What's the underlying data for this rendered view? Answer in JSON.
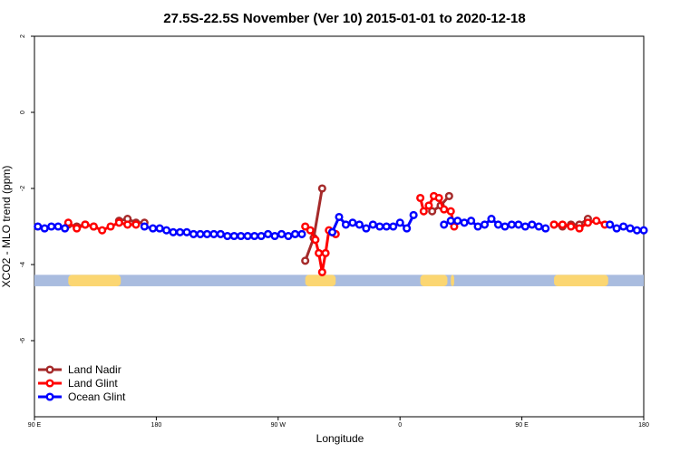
{
  "chart_data": {
    "type": "line",
    "title": "27.5S-22.5S November (Ver 10)   2015-01-01 to 2020-12-18",
    "xlabel": "Longitude",
    "ylabel": "XCO2 - MLO trend (ppm)",
    "xlim": [
      0,
      360
    ],
    "ylim": [
      -8,
      2
    ],
    "x_ticks": [
      {
        "value": 0,
        "label": "90 E"
      },
      {
        "value": 72,
        "label": "180"
      },
      {
        "value": 144,
        "label": "90 W"
      },
      {
        "value": 216,
        "label": "0"
      },
      {
        "value": 288,
        "label": "90 E"
      },
      {
        "value": 360,
        "label": "180"
      }
    ],
    "y_ticks": [
      {
        "value": 2,
        "label": "2"
      },
      {
        "value": 0,
        "label": "0"
      },
      {
        "value": -2,
        "label": "-2"
      },
      {
        "value": -4,
        "label": "-4"
      },
      {
        "value": -6,
        "label": "-6"
      }
    ],
    "legend_position": "bottom-left",
    "series": [
      {
        "name": "Land Nadir",
        "color": "#a52a2a",
        "segments": [
          [
            [
              20,
              -2.95
            ],
            [
              25,
              -3.0
            ],
            [
              30,
              -2.95
            ],
            [
              35,
              -3.0
            ]
          ],
          [
            [
              50,
              -2.85
            ],
            [
              55,
              -2.8
            ],
            [
              60,
              -2.9
            ],
            [
              65,
              -2.9
            ]
          ],
          [
            [
              160,
              -3.9
            ],
            [
              165,
              -3.3
            ],
            [
              170,
              -2.0
            ]
          ],
          [
            [
              235,
              -2.6
            ],
            [
              240,
              -2.45
            ],
            [
              245,
              -2.2
            ]
          ],
          [
            [
              307,
              -2.95
            ],
            [
              312,
              -3.0
            ],
            [
              317,
              -2.95
            ],
            [
              322,
              -2.95
            ],
            [
              327,
              -2.8
            ]
          ]
        ]
      },
      {
        "name": "Land Glint",
        "color": "#ff0000",
        "segments": [
          [
            [
              20,
              -2.9
            ],
            [
              25,
              -3.05
            ],
            [
              30,
              -2.95
            ],
            [
              35,
              -3.0
            ],
            [
              40,
              -3.1
            ],
            [
              45,
              -3.0
            ],
            [
              50,
              -2.9
            ],
            [
              55,
              -2.95
            ],
            [
              60,
              -2.95
            ]
          ],
          [
            [
              160,
              -3.0
            ],
            [
              163,
              -3.1
            ],
            [
              166,
              -3.35
            ],
            [
              168,
              -3.7
            ],
            [
              170,
              -4.2
            ],
            [
              172,
              -3.7
            ],
            [
              174,
              -3.1
            ],
            [
              176,
              -3.15
            ],
            [
              178,
              -3.2
            ]
          ],
          [
            [
              228,
              -2.25
            ],
            [
              230,
              -2.6
            ],
            [
              233,
              -2.45
            ],
            [
              236,
              -2.2
            ],
            [
              239,
              -2.25
            ],
            [
              242,
              -2.55
            ],
            [
              246,
              -2.6
            ],
            [
              248,
              -3.0
            ]
          ],
          [
            [
              307,
              -2.95
            ],
            [
              312,
              -2.95
            ],
            [
              317,
              -3.0
            ],
            [
              322,
              -3.05
            ],
            [
              327,
              -2.9
            ],
            [
              332,
              -2.85
            ],
            [
              337,
              -2.95
            ]
          ]
        ]
      },
      {
        "name": "Ocean Glint",
        "color": "#0000ff",
        "segments": [
          [
            [
              2,
              -3.0
            ],
            [
              6,
              -3.05
            ],
            [
              10,
              -3.0
            ],
            [
              14,
              -3.0
            ],
            [
              18,
              -3.05
            ]
          ],
          [
            [
              65,
              -3.0
            ],
            [
              70,
              -3.05
            ],
            [
              74,
              -3.05
            ],
            [
              78,
              -3.1
            ],
            [
              82,
              -3.15
            ],
            [
              86,
              -3.15
            ],
            [
              90,
              -3.15
            ],
            [
              94,
              -3.2
            ],
            [
              98,
              -3.2
            ],
            [
              102,
              -3.2
            ],
            [
              106,
              -3.2
            ],
            [
              110,
              -3.2
            ],
            [
              114,
              -3.25
            ],
            [
              118,
              -3.25
            ],
            [
              122,
              -3.25
            ],
            [
              126,
              -3.25
            ],
            [
              130,
              -3.25
            ],
            [
              134,
              -3.25
            ],
            [
              138,
              -3.2
            ],
            [
              142,
              -3.25
            ],
            [
              146,
              -3.2
            ],
            [
              150,
              -3.25
            ],
            [
              154,
              -3.2
            ],
            [
              158,
              -3.2
            ]
          ],
          [
            [
              176,
              -3.15
            ],
            [
              180,
              -2.75
            ],
            [
              184,
              -2.95
            ],
            [
              188,
              -2.9
            ],
            [
              192,
              -2.95
            ],
            [
              196,
              -3.05
            ],
            [
              200,
              -2.95
            ],
            [
              204,
              -3.0
            ],
            [
              208,
              -3.0
            ],
            [
              212,
              -3.0
            ],
            [
              216,
              -2.9
            ],
            [
              220,
              -3.05
            ],
            [
              224,
              -2.7
            ]
          ],
          [
            [
              242,
              -2.95
            ],
            [
              246,
              -2.85
            ],
            [
              250,
              -2.85
            ],
            [
              254,
              -2.9
            ],
            [
              258,
              -2.85
            ],
            [
              262,
              -3.0
            ],
            [
              266,
              -2.95
            ],
            [
              270,
              -2.8
            ],
            [
              274,
              -2.95
            ],
            [
              278,
              -3.0
            ],
            [
              282,
              -2.95
            ],
            [
              286,
              -2.95
            ],
            [
              290,
              -3.0
            ],
            [
              294,
              -2.95
            ],
            [
              298,
              -3.0
            ],
            [
              302,
              -3.05
            ]
          ],
          [
            [
              340,
              -2.95
            ],
            [
              344,
              -3.05
            ],
            [
              348,
              -3.0
            ],
            [
              352,
              -3.05
            ],
            [
              356,
              -3.1
            ],
            [
              360,
              -3.1
            ]
          ]
        ]
      }
    ],
    "surface_band": {
      "y_range": [
        -4.57,
        -4.27
      ],
      "ocean_color": "#a9bcdf",
      "land_color": "#fbd672",
      "land_spans": [
        [
          20,
          51
        ],
        [
          160,
          178
        ],
        [
          228,
          244
        ],
        [
          246,
          248
        ],
        [
          307,
          339
        ]
      ]
    }
  }
}
